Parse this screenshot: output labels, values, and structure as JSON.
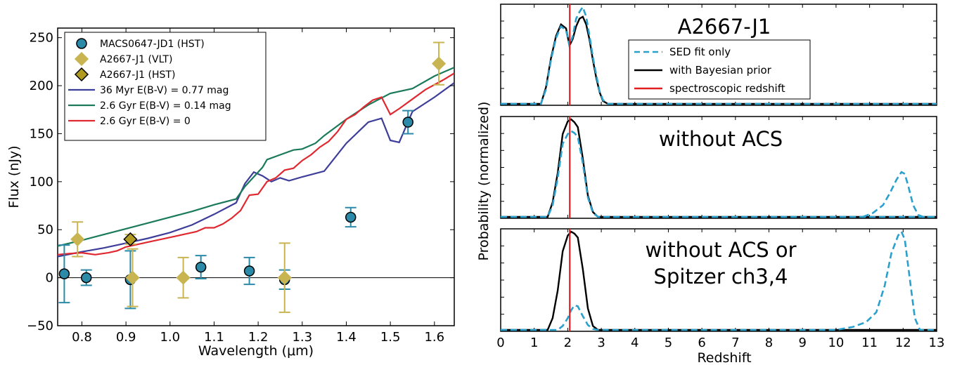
{
  "chart_data": [
    {
      "type": "scatter",
      "xlabel": "Wavelength (μm)",
      "ylabel": "Flux (nJy)",
      "xlim": [
        0.745,
        1.645
      ],
      "ylim": [
        -50,
        260
      ],
      "xticks": [
        "0.8",
        "0.9",
        "1.0",
        "1.1",
        "1.2",
        "1.3",
        "1.4",
        "1.5",
        "1.6"
      ],
      "yticks": [
        "−50",
        "0",
        "50",
        "100",
        "150",
        "200",
        "250"
      ],
      "legend_position": "top-left",
      "colors": {
        "jd1": "#2a8aa8",
        "vlt": "#c8b450",
        "hst": "#b09a20",
        "myr36": "#3d3d9a",
        "gyr_ebv": "#1a7a5a",
        "gyr0": "#e02830"
      },
      "points": [
        {
          "name": "MACS0647-JD1 (HST)",
          "marker": "circle",
          "x": [
            0.76,
            0.81,
            0.91,
            1.07,
            1.18,
            1.26,
            1.41,
            1.54
          ],
          "y": [
            4,
            0,
            -2,
            11,
            7,
            -2,
            63,
            162
          ],
          "yerr": [
            30,
            8,
            30,
            12,
            14,
            10,
            10,
            12
          ]
        },
        {
          "name": "A2667-J1 (VLT)",
          "marker": "diamond",
          "x": [
            0.79,
            0.915,
            1.03,
            1.26,
            1.61
          ],
          "y": [
            40,
            0,
            0,
            0,
            223
          ],
          "yerr": [
            18,
            30,
            21,
            36,
            22
          ]
        },
        {
          "name": "A2667-J1 (HST)",
          "marker": "diamond",
          "x": [
            0.91
          ],
          "y": [
            40
          ],
          "yerr": [
            5
          ]
        }
      ],
      "series": [
        {
          "name": "36 Myr  E(B-V) = 0.77 mag",
          "x": [
            0.745,
            0.8,
            0.85,
            0.9,
            0.95,
            1.0,
            1.05,
            1.1,
            1.15,
            1.17,
            1.19,
            1.21,
            1.23,
            1.25,
            1.27,
            1.3,
            1.35,
            1.4,
            1.45,
            1.48,
            1.5,
            1.52,
            1.55,
            1.6,
            1.645
          ],
          "y": [
            22,
            27,
            31,
            36,
            41,
            47,
            55,
            66,
            78,
            98,
            110,
            106,
            100,
            104,
            101,
            105,
            111,
            140,
            162,
            166,
            143,
            141,
            173,
            188,
            203
          ]
        },
        {
          "name": "2.6 Gyr  E(B-V) = 0.14 mag",
          "x": [
            0.745,
            0.8,
            0.85,
            0.9,
            0.95,
            1.0,
            1.05,
            1.1,
            1.15,
            1.17,
            1.19,
            1.21,
            1.22,
            1.25,
            1.28,
            1.3,
            1.33,
            1.35,
            1.4,
            1.45,
            1.5,
            1.55,
            1.6,
            1.645
          ],
          "y": [
            33,
            39,
            45,
            51,
            57,
            63,
            69,
            76,
            82,
            95,
            105,
            115,
            123,
            128,
            133,
            134,
            140,
            148,
            165,
            180,
            192,
            197,
            210,
            219
          ]
        },
        {
          "name": "2.6 Gyr  E(B-V) = 0",
          "x": [
            0.745,
            0.77,
            0.8,
            0.83,
            0.86,
            0.88,
            0.9,
            0.93,
            0.96,
            1.0,
            1.03,
            1.06,
            1.08,
            1.1,
            1.12,
            1.14,
            1.16,
            1.18,
            1.2,
            1.22,
            1.24,
            1.26,
            1.28,
            1.3,
            1.32,
            1.34,
            1.36,
            1.38,
            1.4,
            1.42,
            1.44,
            1.46,
            1.48,
            1.5,
            1.52,
            1.55,
            1.58,
            1.62,
            1.645
          ],
          "y": [
            24,
            25,
            26,
            24,
            26,
            28,
            32,
            35,
            38,
            42,
            45,
            48,
            52,
            52,
            56,
            62,
            70,
            86,
            87,
            100,
            104,
            112,
            114,
            122,
            128,
            136,
            142,
            152,
            165,
            170,
            178,
            185,
            188,
            170,
            176,
            186,
            196,
            206,
            213
          ]
        }
      ]
    },
    {
      "type": "line",
      "xlabel": "Redshift",
      "ylabel": "Probability (normalized)",
      "xlim": [
        0,
        13
      ],
      "xticks": [
        "0",
        "1",
        "2",
        "3",
        "4",
        "5",
        "6",
        "7",
        "8",
        "9",
        "10",
        "11",
        "12",
        "13"
      ],
      "spectroscopic_z": 2.06,
      "colors": {
        "sed": "#2aa0cc",
        "prior": "#000000",
        "specz": "#e02020"
      },
      "legend": [
        "SED fit only",
        "with Bayesian prior",
        "spectroscopic redshift"
      ],
      "panels": [
        {
          "title": "A2667-J1",
          "series": [
            {
              "name": "SED fit only",
              "x": [
                0,
                1.2,
                1.35,
                1.5,
                1.65,
                1.8,
                1.95,
                2.05,
                2.15,
                2.25,
                2.35,
                2.45,
                2.55,
                2.65,
                2.75,
                2.85,
                2.95,
                3.05,
                3.2,
                13
              ],
              "y": [
                0,
                0,
                0.15,
                0.45,
                0.68,
                0.8,
                0.76,
                0.6,
                0.7,
                0.88,
                0.95,
                1.0,
                0.9,
                0.7,
                0.48,
                0.3,
                0.13,
                0.04,
                0,
                0
              ]
            },
            {
              "name": "with Bayesian prior",
              "x": [
                0,
                1.2,
                1.35,
                1.5,
                1.65,
                1.8,
                1.95,
                2.05,
                2.15,
                2.25,
                2.35,
                2.45,
                2.55,
                2.65,
                2.75,
                2.85,
                2.95,
                3.05,
                3.2,
                13
              ],
              "y": [
                0,
                0,
                0.17,
                0.47,
                0.7,
                0.82,
                0.78,
                0.6,
                0.67,
                0.8,
                0.88,
                0.9,
                0.82,
                0.66,
                0.45,
                0.27,
                0.12,
                0.03,
                0,
                0
              ]
            }
          ]
        },
        {
          "title": "without ACS",
          "series": [
            {
              "name": "SED fit only",
              "x": [
                0,
                1.4,
                1.55,
                1.7,
                1.85,
                2.0,
                2.1,
                2.2,
                2.3,
                2.45,
                2.6,
                2.75,
                2.9,
                13
              ],
              "y": [
                0,
                0,
                0.12,
                0.4,
                0.75,
                0.85,
                0.88,
                0.86,
                0.82,
                0.55,
                0.2,
                0.04,
                0,
                0
              ]
            },
            {
              "name": "with Bayesian prior",
              "x": [
                0,
                1.4,
                1.55,
                1.7,
                1.85,
                2.0,
                2.1,
                2.2,
                2.3,
                2.45,
                2.6,
                2.75,
                2.9,
                13
              ],
              "y": [
                0,
                0,
                0.15,
                0.45,
                0.85,
                0.98,
                1.0,
                0.97,
                0.92,
                0.6,
                0.22,
                0.05,
                0,
                0
              ]
            },
            {
              "name": "SED fit only (high-z)",
              "x": [
                10.8,
                11.1,
                11.4,
                11.6,
                11.8,
                11.95,
                12.05,
                12.15,
                12.3,
                12.45,
                12.6,
                13
              ],
              "y": [
                0,
                0.04,
                0.12,
                0.24,
                0.38,
                0.46,
                0.44,
                0.32,
                0.12,
                0.02,
                0,
                0
              ]
            }
          ]
        },
        {
          "title": "without ACS or Spitzer ch3,4",
          "series": [
            {
              "name": "with Bayesian prior",
              "x": [
                0,
                1.4,
                1.55,
                1.7,
                1.85,
                2.0,
                2.1,
                2.2,
                2.3,
                2.45,
                2.6,
                2.75,
                2.9,
                13
              ],
              "y": [
                0,
                0,
                0.12,
                0.4,
                0.8,
                0.96,
                1.0,
                0.98,
                0.94,
                0.62,
                0.22,
                0.04,
                0,
                0
              ]
            },
            {
              "name": "SED fit only",
              "x": [
                0,
                1.7,
                1.85,
                2.0,
                2.1,
                2.2,
                2.3,
                2.45,
                2.6,
                2.75,
                2.9,
                10.0,
                10.5,
                10.9,
                11.2,
                11.45,
                11.65,
                11.85,
                11.95,
                12.05,
                12.2,
                12.35,
                12.5,
                13
              ],
              "y": [
                0,
                0,
                0.04,
                0.12,
                0.2,
                0.25,
                0.24,
                0.14,
                0.05,
                0.01,
                0,
                0,
                0.03,
                0.08,
                0.18,
                0.45,
                0.78,
                0.96,
                1.0,
                0.92,
                0.52,
                0.12,
                0,
                0
              ]
            }
          ]
        }
      ]
    }
  ]
}
